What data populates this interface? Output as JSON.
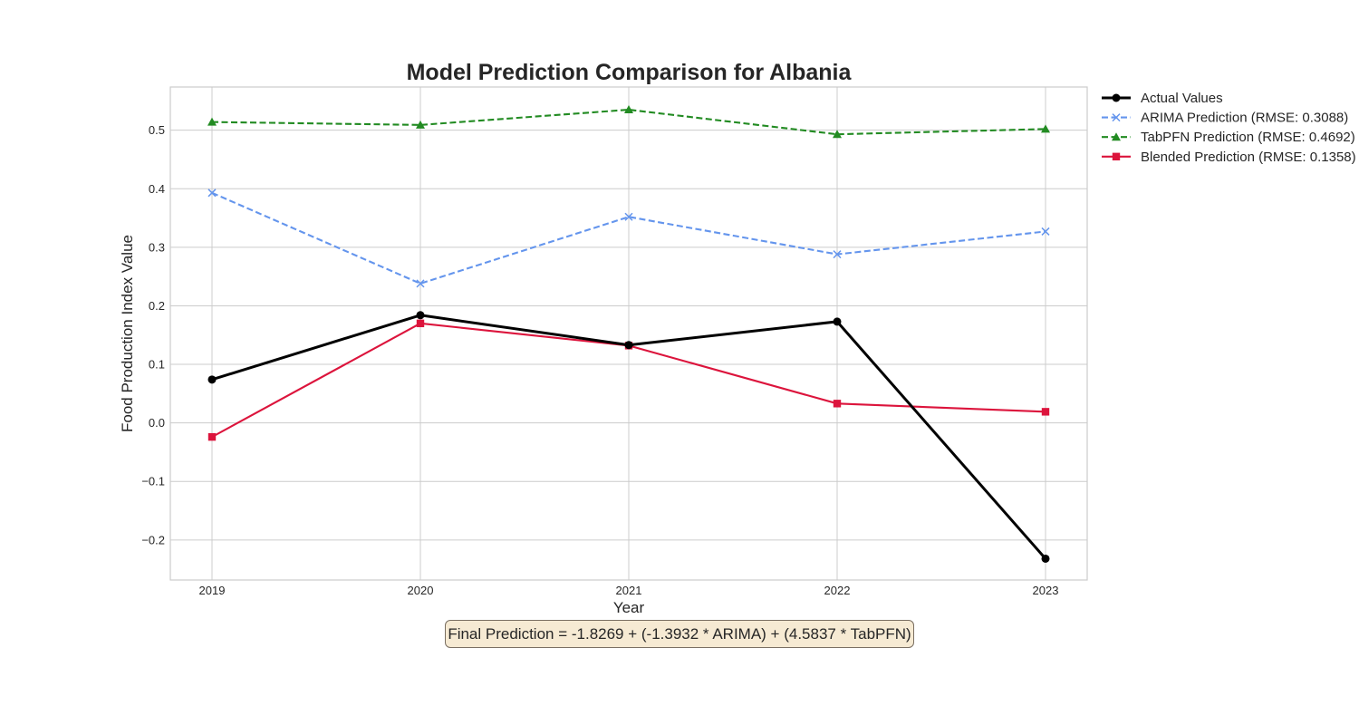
{
  "chart_data": {
    "type": "line",
    "title": "Model Prediction Comparison for Albania",
    "xlabel": "Year",
    "ylabel": "Food Production Index Value",
    "x": [
      2019,
      2020,
      2021,
      2022,
      2023
    ],
    "x_tick_labels": [
      "2019",
      "2020",
      "2021",
      "2022",
      "2023"
    ],
    "xlim": [
      2018.8,
      2023.2
    ],
    "ylim": [
      -0.2684,
      0.5738
    ],
    "y_ticks": [
      -0.2,
      -0.1,
      0.0,
      0.1,
      0.2,
      0.3,
      0.4,
      0.5
    ],
    "y_tick_labels": [
      "−0.2",
      "−0.1",
      "0.0",
      "0.1",
      "0.2",
      "0.3",
      "0.4",
      "0.5"
    ],
    "grid": true,
    "legend_position": "outside-top-right",
    "series": [
      {
        "name": "Actual Values",
        "values": [
          0.074,
          0.184,
          0.133,
          0.173,
          -0.232
        ],
        "color": "#000000",
        "line_style": "solid",
        "marker": "circle"
      },
      {
        "name": "ARIMA Prediction (RMSE: 0.3088)",
        "values": [
          0.393,
          0.238,
          0.352,
          0.288,
          0.327
        ],
        "color": "#6495ed",
        "line_style": "dashed",
        "marker": "x"
      },
      {
        "name": "TabPFN Prediction (RMSE: 0.4692)",
        "values": [
          0.514,
          0.509,
          0.535,
          0.493,
          0.502
        ],
        "color": "#228b22",
        "line_style": "dashed",
        "marker": "triangle"
      },
      {
        "name": "Blended Prediction (RMSE: 0.1358)",
        "values": [
          -0.024,
          0.17,
          0.132,
          0.033,
          0.019
        ],
        "color": "#dc143c",
        "line_style": "solid",
        "marker": "square"
      }
    ],
    "annotation": "Final Prediction = -1.8269 + (-1.3932 * ARIMA) + (4.5837 * TabPFN)"
  }
}
